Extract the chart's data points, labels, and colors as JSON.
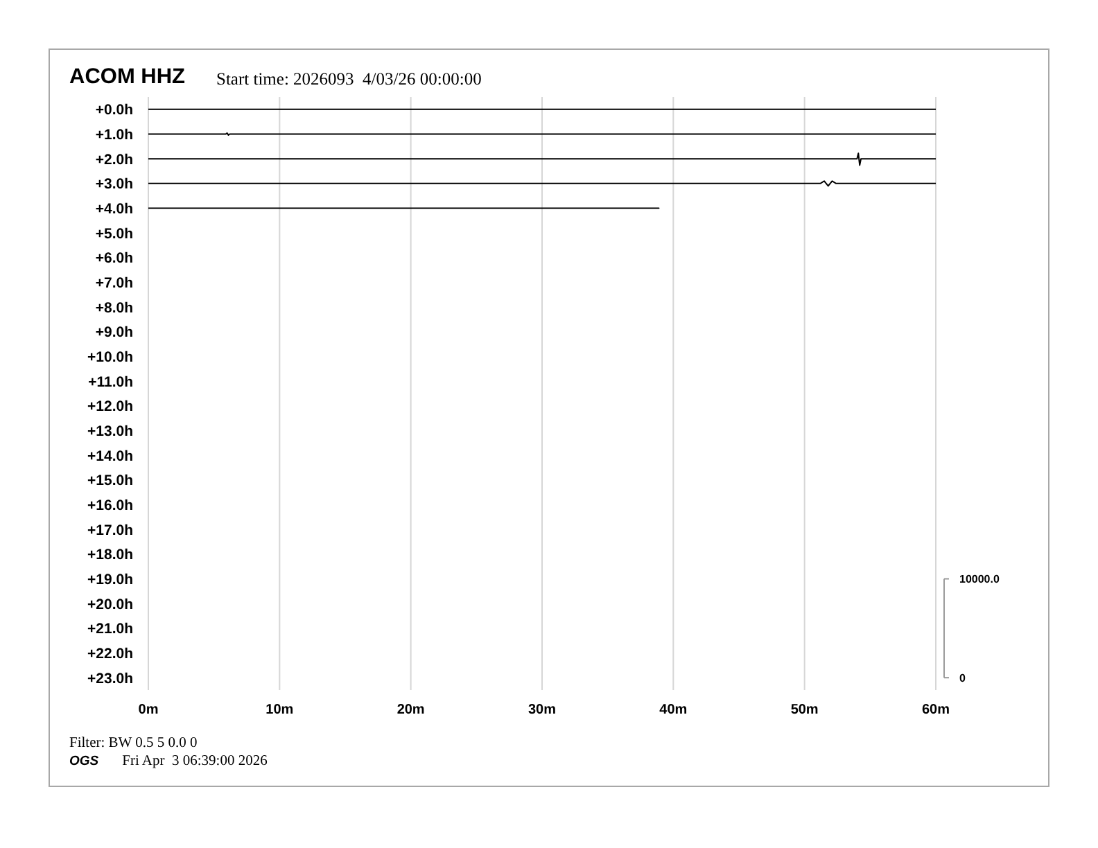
{
  "chart_data": {
    "type": "line",
    "title": "ACOM HHZ",
    "subtitle": "Start time: 2026093  4/03/26 00:00:00",
    "annotations": [
      "Filter: BW 0.5 5 0.0 0",
      "OGS",
      "Fri Apr  3 06:39:00 2026"
    ],
    "xlim": [
      0,
      60
    ],
    "xticks": [
      {
        "value": 0,
        "label": "0m"
      },
      {
        "value": 10,
        "label": "10m"
      },
      {
        "value": 20,
        "label": "20m"
      },
      {
        "value": 30,
        "label": "30m"
      },
      {
        "value": 40,
        "label": "40m"
      },
      {
        "value": 50,
        "label": "50m"
      },
      {
        "value": 60,
        "label": "60m"
      }
    ],
    "ylim": [
      23.5,
      -0.5
    ],
    "yticks": [
      {
        "value": 0,
        "label": "+0.0h"
      },
      {
        "value": 1,
        "label": "+1.0h"
      },
      {
        "value": 2,
        "label": "+2.0h"
      },
      {
        "value": 3,
        "label": "+3.0h"
      },
      {
        "value": 4,
        "label": "+4.0h"
      },
      {
        "value": 5,
        "label": "+5.0h"
      },
      {
        "value": 6,
        "label": "+6.0h"
      },
      {
        "value": 7,
        "label": "+7.0h"
      },
      {
        "value": 8,
        "label": "+8.0h"
      },
      {
        "value": 9,
        "label": "+9.0h"
      },
      {
        "value": 10,
        "label": "+10.0h"
      },
      {
        "value": 11,
        "label": "+11.0h"
      },
      {
        "value": 12,
        "label": "+12.0h"
      },
      {
        "value": 13,
        "label": "+13.0h"
      },
      {
        "value": 14,
        "label": "+14.0h"
      },
      {
        "value": 15,
        "label": "+15.0h"
      },
      {
        "value": 16,
        "label": "+16.0h"
      },
      {
        "value": 17,
        "label": "+17.0h"
      },
      {
        "value": 18,
        "label": "+18.0h"
      },
      {
        "value": 19,
        "label": "+19.0h"
      },
      {
        "value": 20,
        "label": "+20.0h"
      },
      {
        "value": 21,
        "label": "+21.0h"
      },
      {
        "value": 22,
        "label": "+22.0h"
      },
      {
        "value": 23,
        "label": "+23.0h"
      }
    ],
    "y2lim": [
      -1250,
      58750
    ],
    "y2ticks": [
      0,
      {
        "value": 10000,
        "label": "10000.0"
      }
    ],
    "grid": "x",
    "series": [
      {
        "color": "#000000",
        "x": [
          0,
          60
        ],
        "values": [
          0,
          0
        ]
      },
      {
        "color": "#000000",
        "x": [
          0,
          5.9,
          6.0,
          6.1,
          6.2,
          60
        ],
        "values": [
          1,
          1,
          0.96,
          1.04,
          1,
          1
        ]
      },
      {
        "color": "#000000",
        "x": [
          0,
          54.0,
          54.1,
          54.2,
          54.3,
          60
        ],
        "values": [
          2,
          2,
          1.78,
          2.26,
          2,
          2
        ]
      },
      {
        "color": "#000000",
        "x": [
          0,
          51.2,
          51.5,
          51.8,
          52.1,
          52.4,
          60
        ],
        "values": [
          3,
          3,
          2.9,
          3.1,
          2.9,
          3,
          3
        ]
      },
      {
        "color": "#000000",
        "x": [
          0,
          38.9
        ],
        "values": [
          4,
          4
        ]
      }
    ]
  }
}
